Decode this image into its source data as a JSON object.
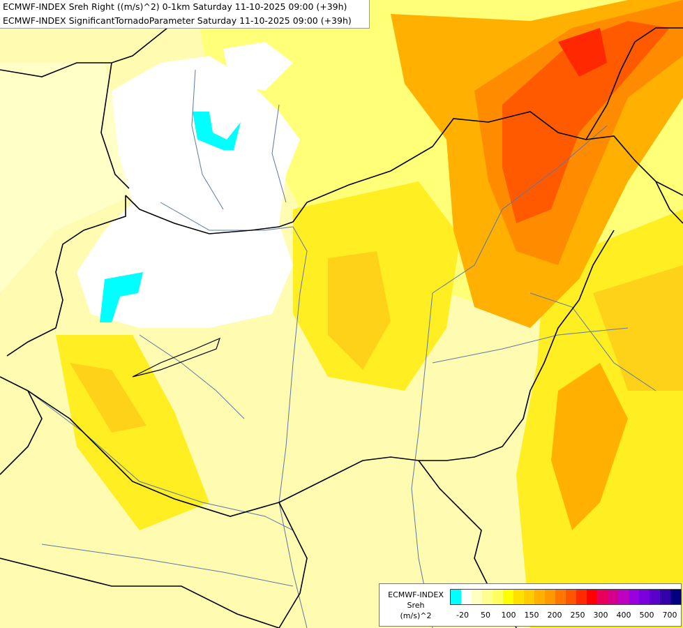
{
  "title": {
    "line1": "ECMWF-INDEX Sreh Right ((m/s)^2) 0-1km Saturday 11-10-2025 09:00 (+39h)",
    "line2": "ECMWF-INDEX SignificantTornadoParameter Saturday 11-10-2025 09:00 (+39h)"
  },
  "legend": {
    "line1": "ECMWF-INDEX",
    "line2": "Sreh",
    "line3": "(m/s)^2",
    "colors": [
      "#00ffff",
      "#ffffff",
      "#ffffc0",
      "#ffff90",
      "#ffff60",
      "#ffff00",
      "#ffe000",
      "#ffcc00",
      "#ffb000",
      "#ff9900",
      "#ff7700",
      "#ff5500",
      "#ff2a00",
      "#ff0000",
      "#e8005a",
      "#d4008c",
      "#c000c0",
      "#9900dd",
      "#7a00dd",
      "#5a00cc",
      "#3300aa",
      "#000080"
    ],
    "ticks": [
      "-20",
      "50",
      "100",
      "150",
      "200",
      "250",
      "300",
      "400",
      "500",
      "700"
    ]
  },
  "map_colors": {
    "base": "#fffbb0",
    "pale": "#ffffc8",
    "light_yellow": "#ffff78",
    "yellow": "#ffee22",
    "gold": "#ffd21a",
    "orange": "#ffb000",
    "dark_orange": "#ff8c00",
    "red_orange": "#ff5a00",
    "red": "#ff2800",
    "white": "#ffffff",
    "cyan": "#00ffff",
    "border": "#000000",
    "river": "#5a78a8"
  }
}
